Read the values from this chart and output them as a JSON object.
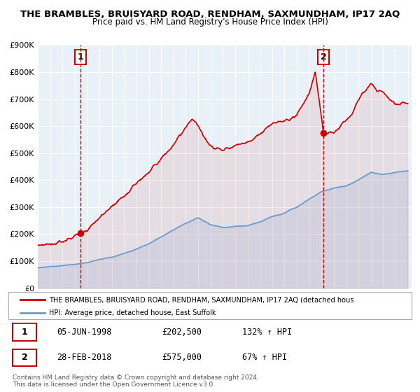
{
  "title": "THE BRAMBLES, BRUISYARD ROAD, RENDHAM, SAXMUNDHAM, IP17 2AQ",
  "subtitle": "Price paid vs. HM Land Registry's House Price Index (HPI)",
  "bg_color": "#e8f0f8",
  "plot_bg_color": "#e8f0f8",
  "red_color": "#cc0000",
  "blue_color": "#6699cc",
  "ylim": [
    0,
    900000
  ],
  "xlim_start": 1995.0,
  "xlim_end": 2025.3,
  "yticks": [
    0,
    100000,
    200000,
    300000,
    400000,
    500000,
    600000,
    700000,
    800000,
    900000
  ],
  "ytick_labels": [
    "£0",
    "£100K",
    "£200K",
    "£300K",
    "£400K",
    "£500K",
    "£600K",
    "£700K",
    "£800K",
    "£900K"
  ],
  "xticks": [
    1995,
    1996,
    1997,
    1998,
    1999,
    2000,
    2001,
    2002,
    2003,
    2004,
    2005,
    2006,
    2007,
    2008,
    2009,
    2010,
    2011,
    2012,
    2013,
    2014,
    2015,
    2016,
    2017,
    2018,
    2019,
    2020,
    2021,
    2022,
    2023,
    2024,
    2025
  ],
  "sale1_x": 1998.44,
  "sale1_y": 202500,
  "sale1_label": "1",
  "sale2_x": 2018.16,
  "sale2_y": 575000,
  "sale2_label": "2",
  "legend_label_red": "THE BRAMBLES, BRUISYARD ROAD, RENDHAM, SAXMUNDHAM, IP17 2AQ (detached hous",
  "legend_label_blue": "HPI: Average price, detached house, East Suffolk",
  "table_row1": [
    "1",
    "05-JUN-1998",
    "£202,500",
    "132% ↑ HPI"
  ],
  "table_row2": [
    "2",
    "28-FEB-2018",
    "£575,000",
    "67% ↑ HPI"
  ],
  "footer1": "Contains HM Land Registry data © Crown copyright and database right 2024.",
  "footer2": "This data is licensed under the Open Government Licence v3.0."
}
